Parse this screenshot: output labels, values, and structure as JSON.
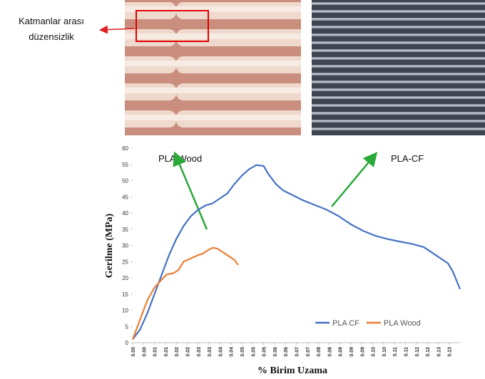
{
  "chart_data": {
    "type": "line",
    "xlabel": "% Birim Uzama",
    "ylabel": "Gerilme (MPa)",
    "annotations": [
      "Katmanlar arası",
      "düzensizlik",
      "PLA Wood",
      "PLA-CF"
    ],
    "xlim": [
      0,
      0.135
    ],
    "ylim": [
      0,
      60
    ],
    "yticks": [
      0,
      5,
      10,
      15,
      20,
      25,
      30,
      35,
      40,
      45,
      50,
      55,
      60
    ],
    "xticks": [
      {
        "value": 0,
        "label": "0.00"
      },
      {
        "value": 0.0045,
        "label": "0.00"
      },
      {
        "value": 0.009,
        "label": "0.01"
      },
      {
        "value": 0.0135,
        "label": "0.01"
      },
      {
        "value": 0.018,
        "label": "0.02"
      },
      {
        "value": 0.0225,
        "label": "0.02"
      },
      {
        "value": 0.027,
        "label": "0.03"
      },
      {
        "value": 0.0315,
        "label": "0.03"
      },
      {
        "value": 0.036,
        "label": "0.04"
      },
      {
        "value": 0.0405,
        "label": "0.04"
      },
      {
        "value": 0.045,
        "label": "0.05"
      },
      {
        "value": 0.0495,
        "label": "0.05"
      },
      {
        "value": 0.054,
        "label": "0.05"
      },
      {
        "value": 0.0585,
        "label": "0.06"
      },
      {
        "value": 0.063,
        "label": "0.06"
      },
      {
        "value": 0.0675,
        "label": "0.07"
      },
      {
        "value": 0.072,
        "label": "0.07"
      },
      {
        "value": 0.0765,
        "label": "0.08"
      },
      {
        "value": 0.081,
        "label": "0.08"
      },
      {
        "value": 0.0855,
        "label": "0.09"
      },
      {
        "value": 0.09,
        "label": "0.09"
      },
      {
        "value": 0.0945,
        "label": "0.09"
      },
      {
        "value": 0.099,
        "label": "0.10"
      },
      {
        "value": 0.1035,
        "label": "0.10"
      },
      {
        "value": 0.108,
        "label": "0.11"
      },
      {
        "value": 0.1125,
        "label": "0.11"
      },
      {
        "value": 0.117,
        "label": "0.12"
      },
      {
        "value": 0.1215,
        "label": "0.12"
      },
      {
        "value": 0.126,
        "label": "0.13"
      },
      {
        "value": 0.1305,
        "label": "0.13"
      }
    ],
    "legend": "lower right",
    "series": [
      {
        "name": "PLA CF",
        "color": "#4472c4",
        "x": [
          0,
          0.003,
          0.006,
          0.009,
          0.012,
          0.015,
          0.018,
          0.021,
          0.024,
          0.027,
          0.03,
          0.033,
          0.036,
          0.039,
          0.042,
          0.045,
          0.048,
          0.051,
          0.054,
          0.056,
          0.059,
          0.062,
          0.066,
          0.07,
          0.075,
          0.08,
          0.085,
          0.09,
          0.095,
          0.1,
          0.105,
          0.11,
          0.115,
          0.12,
          0.123,
          0.126,
          0.13,
          0.132,
          0.135
        ],
        "values": [
          1,
          4,
          9,
          15,
          21,
          27,
          32,
          36,
          39,
          41,
          42.3,
          43,
          44.5,
          46,
          49,
          51.5,
          53.5,
          54.8,
          54.5,
          52,
          49,
          47,
          45.5,
          44,
          42.5,
          41,
          39,
          36.5,
          34.5,
          33,
          32,
          31.2,
          30.5,
          29.5,
          28,
          26.5,
          24.5,
          22,
          16.5
        ]
      },
      {
        "name": "PLA Wood",
        "color": "#ed7d31",
        "x": [
          0,
          0.003,
          0.006,
          0.009,
          0.012,
          0.014,
          0.017,
          0.019,
          0.021,
          0.024,
          0.027,
          0.029,
          0.031,
          0.033,
          0.035,
          0.037,
          0.039,
          0.041,
          0.042,
          0.0435
        ],
        "values": [
          1,
          7,
          13,
          17,
          19.5,
          21,
          21.5,
          22.5,
          25,
          26,
          27,
          27.5,
          28.5,
          29.3,
          29,
          28,
          27,
          26,
          25.5,
          24
        ]
      }
    ]
  }
}
